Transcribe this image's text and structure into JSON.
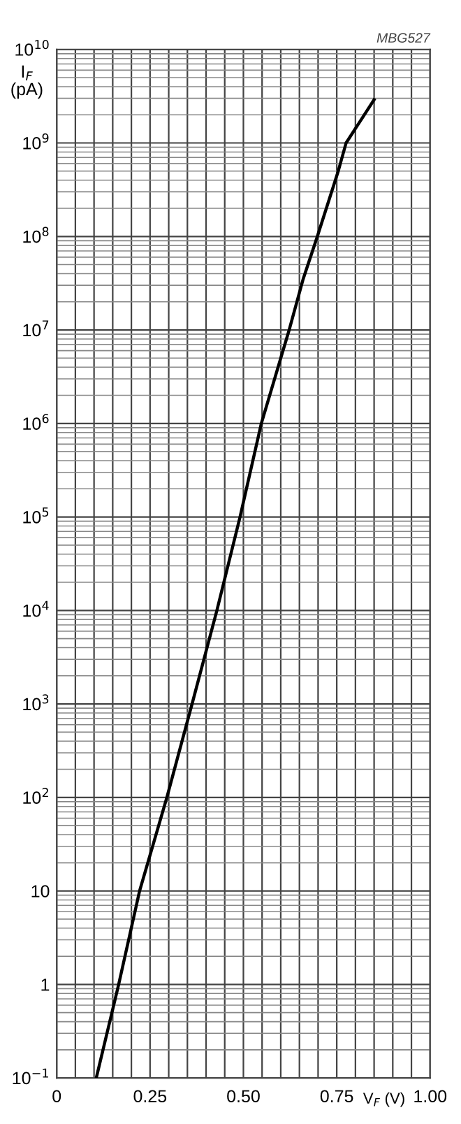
{
  "chart_data": {
    "type": "line",
    "xlabel": "V$_{F}$ (V)",
    "ylabel": "I$_{F}$\n(pA)",
    "annotations": [
      "MBG527"
    ],
    "x": [
      0.106,
      0.166,
      0.222,
      0.295,
      0.3625,
      0.429,
      0.491,
      0.548,
      0.6225,
      0.66,
      0.698,
      0.754,
      0.775,
      0.85
    ],
    "series": [
      {
        "color": "#000000",
        "values": [
          0.1,
          1,
          10,
          100,
          1000,
          10000,
          100000,
          1000000,
          10000000,
          35000000,
          100000000,
          500000000,
          1000000000,
          2900000000
        ]
      }
    ],
    "log": "y",
    "grid": true,
    "marker": "none",
    "line_style": "solid",
    "xlim": [
      0,
      1.0
    ],
    "ylim": [
      0.1,
      10000000000
    ],
    "xticks": [
      0,
      {
        "value": 0.05,
        "label": null
      },
      {
        "value": 0.1,
        "label": null
      },
      {
        "value": 0.15,
        "label": null
      },
      {
        "value": 0.2,
        "label": null
      },
      {
        "value": 0.25,
        "label": "0.25"
      },
      {
        "value": 0.3,
        "label": null
      },
      {
        "value": 0.35,
        "label": null
      },
      {
        "value": 0.4,
        "label": null
      },
      {
        "value": 0.45,
        "label": null
      },
      {
        "value": 0.5,
        "label": "0.50"
      },
      {
        "value": 0.55,
        "label": null
      },
      {
        "value": 0.6,
        "label": null
      },
      {
        "value": 0.65,
        "label": null
      },
      {
        "value": 0.7,
        "label": null
      },
      {
        "value": 0.75,
        "label": "0.75"
      },
      {
        "value": 0.8,
        "label": null
      },
      {
        "value": 0.85,
        "label": null
      },
      {
        "value": 0.9,
        "label": null
      },
      {
        "value": 0.95,
        "label": null
      },
      {
        "value": 1.0,
        "label": "1.00"
      }
    ],
    "yticks": [
      {
        "value": 0.1,
        "label": "10$^{−1}$"
      },
      1,
      10,
      {
        "value": 100,
        "label": "10$^{2}$"
      },
      {
        "value": 1000,
        "label": "10$^{3}$"
      },
      {
        "value": 10000,
        "label": "10$^{4}$"
      },
      {
        "value": 100000,
        "label": "10$^{5}$"
      },
      {
        "value": 1000000,
        "label": "10$^{6}$"
      },
      {
        "value": 10000000,
        "label": "10$^{7}$"
      },
      {
        "value": 100000000,
        "label": "10$^{8}$"
      },
      {
        "value": 1000000000,
        "label": "10$^{9}$"
      },
      {
        "value": 10000000000,
        "label": "10$^{10}$"
      }
    ]
  }
}
